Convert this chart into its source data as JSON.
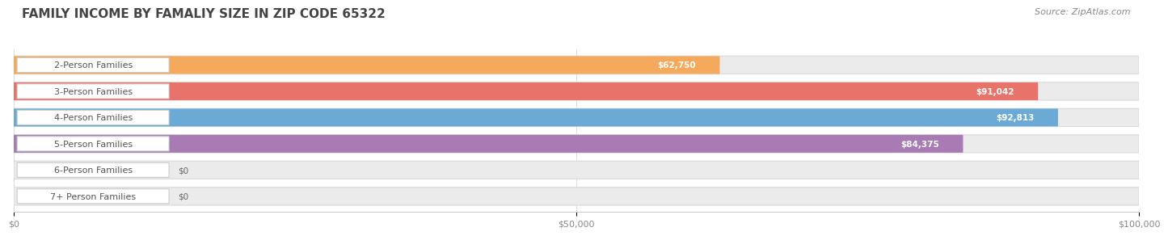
{
  "title": "FAMILY INCOME BY FAMALIY SIZE IN ZIP CODE 65322",
  "source": "Source: ZipAtlas.com",
  "categories": [
    "2-Person Families",
    "3-Person Families",
    "4-Person Families",
    "5-Person Families",
    "6-Person Families",
    "7+ Person Families"
  ],
  "values": [
    62750,
    91042,
    92813,
    84375,
    0,
    0
  ],
  "bar_colors": [
    "#F5A95C",
    "#E8736A",
    "#6BAAD4",
    "#A87BB5",
    "#6DC5BB",
    "#A8B8D8"
  ],
  "value_labels": [
    "$62,750",
    "$91,042",
    "$92,813",
    "$84,375",
    "$0",
    "$0"
  ],
  "xlim": [
    0,
    100000
  ],
  "xticks": [
    0,
    50000,
    100000
  ],
  "xtick_labels": [
    "$0",
    "$50,000",
    "$100,000"
  ],
  "title_color": "#444444",
  "source_color": "#888888",
  "label_text_color": "#555555",
  "value_text_color_inside": "#FFFFFF",
  "value_text_color_outside": "#666666",
  "background_color": "#FFFFFF",
  "bar_bg_color": "#EBEBEB",
  "title_fontsize": 11,
  "bar_label_fontsize": 8,
  "value_fontsize": 7.5,
  "source_fontsize": 8,
  "tick_fontsize": 8
}
